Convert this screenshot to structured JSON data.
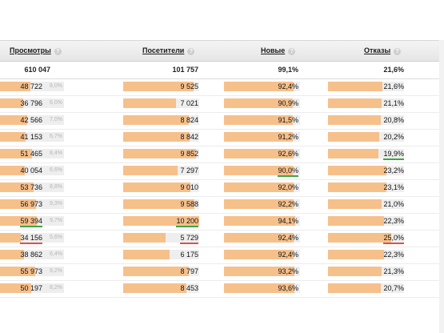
{
  "headers": {
    "views": "Просмотры",
    "visitors": "Посетители",
    "new": "Новые",
    "bounces": "Отказы",
    "help": "?"
  },
  "totals": {
    "views": "610 047",
    "visitors": "101 757",
    "new": "99,1%",
    "bounces": "21,6%"
  },
  "rows": [
    {
      "views": "48 722",
      "views_share": "8,0%",
      "views_fill": 0.48,
      "visitors": "9 525",
      "visitors_fill": 0.93,
      "new": "92,4%",
      "new_fill": 0.92,
      "bounces": "21,6%",
      "bounces_fill": 0.72
    },
    {
      "views": "36 796",
      "views_share": "6,0%",
      "views_fill": 0.36,
      "visitors": "7 021",
      "visitors_fill": 0.69,
      "new": "90,9%",
      "new_fill": 0.91,
      "bounces": "21,1%",
      "bounces_fill": 0.7
    },
    {
      "views": "42 566",
      "views_share": "7,0%",
      "views_fill": 0.42,
      "visitors": "8 824",
      "visitors_fill": 0.86,
      "new": "91,5%",
      "new_fill": 0.91,
      "bounces": "20,8%",
      "bounces_fill": 0.69
    },
    {
      "views": "41 153",
      "views_share": "6,7%",
      "views_fill": 0.4,
      "visitors": "8 842",
      "visitors_fill": 0.87,
      "new": "91,2%",
      "new_fill": 0.91,
      "bounces": "20,2%",
      "bounces_fill": 0.67
    },
    {
      "views": "51 465",
      "views_share": "8,4%",
      "views_fill": 0.5,
      "visitors": "9 852",
      "visitors_fill": 0.96,
      "new": "92,6%",
      "new_fill": 0.92,
      "bounces": "19,9%",
      "bounces_fill": 0.66,
      "bounces_mark": "green"
    },
    {
      "views": "40 054",
      "views_share": "6,6%",
      "views_fill": 0.39,
      "visitors": "7 297",
      "visitors_fill": 0.72,
      "new": "90,0%",
      "new_fill": 0.9,
      "new_mark": "green",
      "bounces": "23,2%",
      "bounces_fill": 0.77
    },
    {
      "views": "53 736",
      "views_share": "8,8%",
      "views_fill": 0.52,
      "visitors": "9 010",
      "visitors_fill": 0.88,
      "new": "92,0%",
      "new_fill": 0.92,
      "bounces": "23,1%",
      "bounces_fill": 0.77
    },
    {
      "views": "56 973",
      "views_share": "9,3%",
      "views_fill": 0.56,
      "visitors": "9 588",
      "visitors_fill": 0.94,
      "new": "92,2%",
      "new_fill": 0.92,
      "bounces": "21,0%",
      "bounces_fill": 0.7
    },
    {
      "views": "59 394",
      "views_share": "9,7%",
      "views_fill": 0.58,
      "views_mark": "green",
      "visitors": "10 200",
      "visitors_fill": 1.0,
      "visitors_mark": "green",
      "new": "94,1%",
      "new_fill": 0.94,
      "bounces": "22,3%",
      "bounces_fill": 0.74
    },
    {
      "views": "34 156",
      "views_share": "5,6%",
      "views_fill": 0.33,
      "views_mark": "red",
      "visitors": "5 729",
      "visitors_fill": 0.56,
      "visitors_mark": "red",
      "new": "92,4%",
      "new_fill": 0.92,
      "bounces": "25,0%",
      "bounces_fill": 0.83,
      "bounces_mark": "red"
    },
    {
      "views": "38 862",
      "views_share": "6,4%",
      "views_fill": 0.38,
      "visitors": "6 175",
      "visitors_fill": 0.61,
      "new": "92,4%",
      "new_fill": 0.92,
      "bounces": "22,3%",
      "bounces_fill": 0.74
    },
    {
      "views": "55 973",
      "views_share": "9,2%",
      "views_fill": 0.55,
      "visitors": "8 797",
      "visitors_fill": 0.86,
      "new": "93,2%",
      "new_fill": 0.93,
      "bounces": "21,3%",
      "bounces_fill": 0.71
    },
    {
      "views": "50 197",
      "views_share": "8,2%",
      "views_fill": 0.49,
      "visitors": "8 453",
      "visitors_fill": 0.83,
      "new": "93,6%",
      "new_fill": 0.93,
      "bounces": "20,7%",
      "bounces_fill": 0.69
    }
  ],
  "colors": {
    "bar": "#f6c08b",
    "bar_track": "#eeeeee",
    "mark_red": "#d9534f",
    "mark_green": "#3ea646"
  }
}
